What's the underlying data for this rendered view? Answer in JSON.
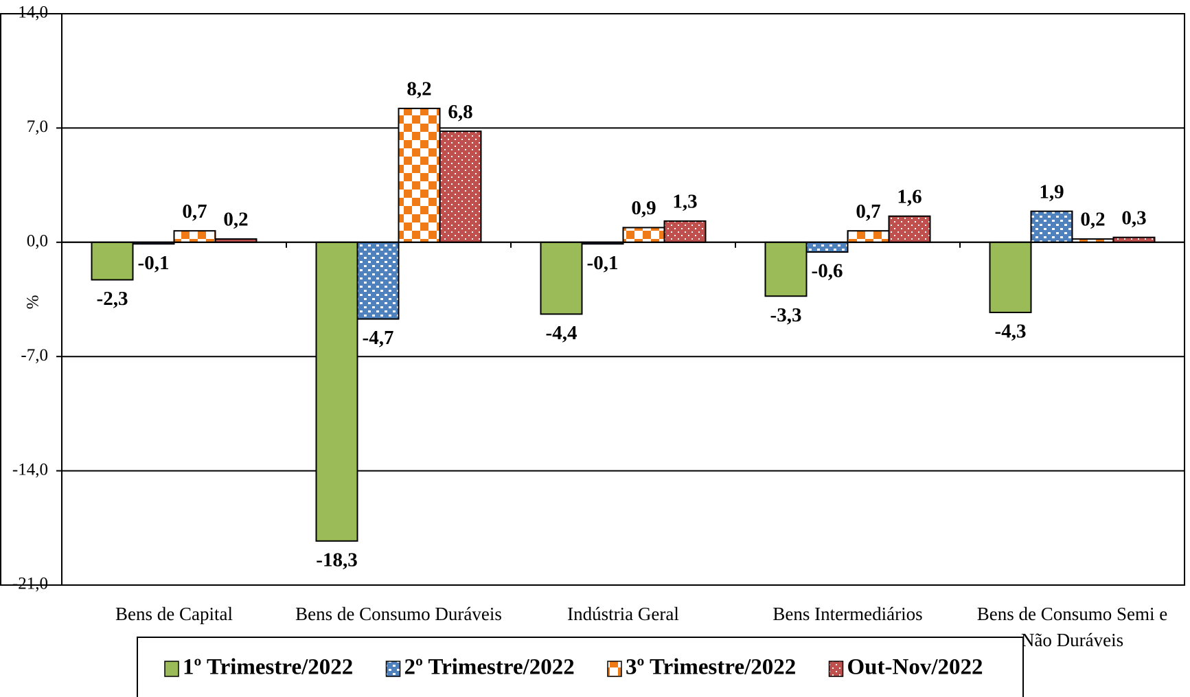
{
  "chart_data": {
    "type": "bar",
    "y_label": "%",
    "categories": [
      "Bens de Capital",
      "Bens de Consumo Duráveis",
      "Indústria Geral",
      "Bens Intermediários",
      "Bens de Consumo Semi e Não Duráveis"
    ],
    "series": [
      {
        "name": "1º Trimestre/2022",
        "color": "#9bbb59",
        "values": [
          -2.3,
          -18.3,
          -4.4,
          -3.3,
          -4.3
        ],
        "value_labels": [
          "-2,3",
          "-18,3",
          "-4,4",
          "-3,3",
          "-4,3"
        ]
      },
      {
        "name": "2º Trimestre/2022",
        "color": "#4f81bd",
        "values": [
          -0.1,
          -4.7,
          -0.1,
          -0.6,
          1.9
        ],
        "value_labels": [
          "-0,1",
          "-4,7",
          "-0,1",
          "-0,6",
          "1,9"
        ]
      },
      {
        "name": "3º Trimestre/2022",
        "color": "#f07b16",
        "values": [
          0.7,
          8.2,
          0.9,
          0.7,
          0.2
        ],
        "value_labels": [
          "0,7",
          "8,2",
          "0,9",
          "0,7",
          "0,2"
        ]
      },
      {
        "name": "Out-Nov/2022",
        "color": "#c0504d",
        "values": [
          0.2,
          6.8,
          1.3,
          1.6,
          0.3
        ],
        "value_labels": [
          "0,2",
          "6,8",
          "1,3",
          "1,6",
          "0,3"
        ]
      }
    ],
    "ylim": [
      -21,
      14
    ],
    "yticks": [
      {
        "value": -21,
        "label": "-21,0"
      },
      {
        "value": -14,
        "label": "-14,0"
      },
      {
        "value": -7,
        "label": "-7,0"
      },
      {
        "value": 0,
        "label": "0,0"
      },
      {
        "value": 7,
        "label": "7,0"
      },
      {
        "value": 14,
        "label": "14,0"
      }
    ],
    "grid": true,
    "legend": "bottom"
  }
}
